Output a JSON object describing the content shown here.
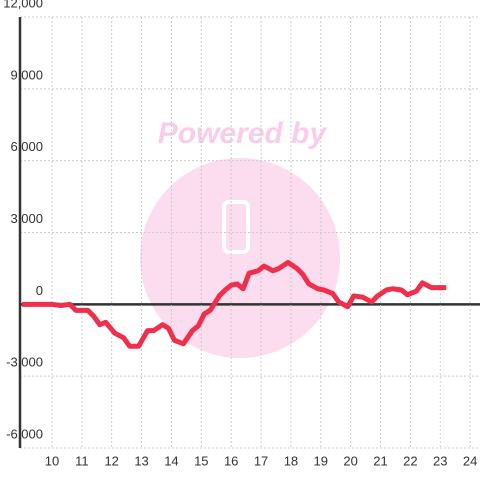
{
  "chart_data": {
    "type": "line",
    "watermark": "Powered by",
    "x": [
      9,
      10,
      10.3,
      10.6,
      10.8,
      11.2,
      11.4,
      11.6,
      11.8,
      12.1,
      12.4,
      12.6,
      12.9,
      13.2,
      13.4,
      13.7,
      13.9,
      14.1,
      14.4,
      14.7,
      14.9,
      15.1,
      15.3,
      15.6,
      15.8,
      16.0,
      16.2,
      16.4,
      16.6,
      16.9,
      17.1,
      17.4,
      17.6,
      17.9,
      18.2,
      18.4,
      18.6,
      18.9,
      19.1,
      19.4,
      19.6,
      19.9,
      20.1,
      20.4,
      20.7,
      20.9,
      21.2,
      21.4,
      21.7,
      21.9,
      22.2,
      22.4,
      22.7,
      22.9,
      23.2
    ],
    "series": [
      {
        "color": "#ef2f4b",
        "values": [
          0,
          0,
          -50,
          0,
          -250,
          -250,
          -500,
          -850,
          -750,
          -1200,
          -1400,
          -1750,
          -1750,
          -1100,
          -1100,
          -850,
          -1000,
          -1500,
          -1650,
          -1100,
          -900,
          -400,
          -250,
          350,
          600,
          800,
          850,
          650,
          1300,
          1400,
          1600,
          1400,
          1500,
          1750,
          1500,
          1250,
          850,
          650,
          600,
          450,
          100,
          -100,
          350,
          300,
          100,
          350,
          600,
          650,
          600,
          400,
          550,
          900,
          700,
          700,
          700
        ]
      }
    ],
    "xlim": [
      8.93,
      24.33
    ],
    "xticks": [
      10,
      11,
      12,
      13,
      14,
      15,
      16,
      17,
      18,
      19,
      20,
      21,
      22,
      23,
      24
    ],
    "ylim": [
      -6000,
      12000
    ],
    "yticks": [
      {
        "value": -6000,
        "label": "-6,000"
      },
      {
        "value": -3000,
        "label": "-3,000"
      },
      0,
      {
        "value": 3000,
        "label": "3,000"
      },
      {
        "value": 6000,
        "label": "6,000"
      },
      {
        "value": 9000,
        "label": "9,000"
      },
      {
        "value": 12000,
        "label": "12,000"
      }
    ],
    "grid": true
  }
}
